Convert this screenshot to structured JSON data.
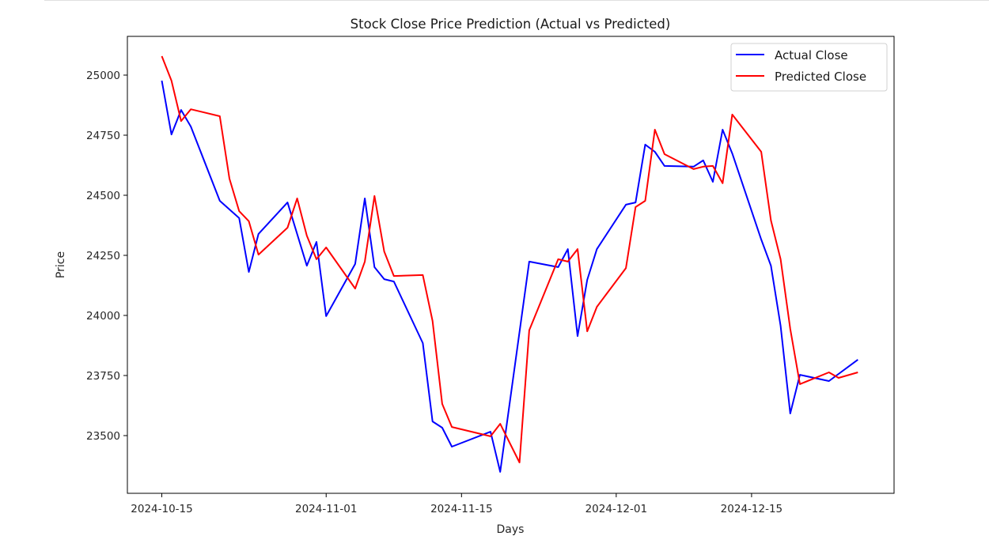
{
  "chart_data": {
    "type": "line",
    "title": "Stock Close Price Prediction (Actual vs Predicted)",
    "xlabel": "Days",
    "ylabel": "Price",
    "x_ticks": [
      "2024-10-15",
      "2024-11-01",
      "2024-11-15",
      "2024-12-01",
      "2024-12-15"
    ],
    "y_ticks": [
      23500,
      23750,
      24000,
      24250,
      24500,
      24750,
      25000
    ],
    "xlim": [
      "2024-10-11",
      "2024-12-29"
    ],
    "ylim": [
      23305,
      25155
    ],
    "grid": false,
    "legend_position": "upper right",
    "series": [
      {
        "name": "Actual Close",
        "color": "#0000ff",
        "x": [
          "2024-10-15",
          "2024-10-16",
          "2024-10-17",
          "2024-10-18",
          "2024-10-21",
          "2024-10-23",
          "2024-10-24",
          "2024-10-25",
          "2024-10-28",
          "2024-10-30",
          "2024-10-31",
          "2024-11-01",
          "2024-11-04",
          "2024-11-05",
          "2024-11-06",
          "2024-11-07",
          "2024-11-08",
          "2024-11-11",
          "2024-11-12",
          "2024-11-13",
          "2024-11-14",
          "2024-11-18",
          "2024-11-19",
          "2024-11-22",
          "2024-11-25",
          "2024-11-26",
          "2024-11-27",
          "2024-11-28",
          "2024-11-29",
          "2024-12-02",
          "2024-12-03",
          "2024-12-04",
          "2024-12-05",
          "2024-12-06",
          "2024-12-09",
          "2024-12-10",
          "2024-12-11",
          "2024-12-12",
          "2024-12-13",
          "2024-12-16",
          "2024-12-17",
          "2024-12-18",
          "2024-12-19",
          "2024-12-20",
          "2024-12-23",
          "2024-12-26"
        ],
        "values": [
          24977,
          24753,
          24855,
          24786,
          24477,
          24405,
          24181,
          24339,
          24470,
          24207,
          24306,
          23997,
          24214,
          24487,
          24201,
          24151,
          24141,
          23885,
          23559,
          23533,
          23454,
          23516,
          23349,
          24224,
          24201,
          24276,
          23914,
          24148,
          24276,
          24461,
          24470,
          24711,
          24681,
          24622,
          24619,
          24645,
          24556,
          24773,
          24674,
          24316,
          24207,
          23957,
          23592,
          23753,
          23727,
          23816
        ]
      },
      {
        "name": "Predicted Close",
        "color": "#ff0000",
        "x": [
          "2024-10-15",
          "2024-10-16",
          "2024-10-17",
          "2024-10-18",
          "2024-10-21",
          "2024-10-22",
          "2024-10-23",
          "2024-10-24",
          "2024-10-25",
          "2024-10-28",
          "2024-10-29",
          "2024-10-30",
          "2024-10-31",
          "2024-11-01",
          "2024-11-04",
          "2024-11-05",
          "2024-11-06",
          "2024-11-07",
          "2024-11-08",
          "2024-11-11",
          "2024-11-12",
          "2024-11-13",
          "2024-11-14",
          "2024-11-18",
          "2024-11-19",
          "2024-11-21",
          "2024-11-22",
          "2024-11-25",
          "2024-11-26",
          "2024-11-27",
          "2024-11-28",
          "2024-11-29",
          "2024-12-02",
          "2024-12-03",
          "2024-12-04",
          "2024-12-05",
          "2024-12-06",
          "2024-12-09",
          "2024-12-10",
          "2024-12-11",
          "2024-12-12",
          "2024-12-13",
          "2024-12-16",
          "2024-12-17",
          "2024-12-18",
          "2024-12-19",
          "2024-12-20",
          "2024-12-23",
          "2024-12-24",
          "2024-12-26"
        ],
        "values": [
          25079,
          24977,
          24809,
          24858,
          24829,
          24569,
          24434,
          24392,
          24253,
          24365,
          24487,
          24332,
          24234,
          24283,
          24112,
          24224,
          24497,
          24266,
          24164,
          24168,
          23977,
          23632,
          23536,
          23497,
          23549,
          23388,
          23938,
          24234,
          24224,
          24276,
          23934,
          24036,
          24197,
          24451,
          24477,
          24773,
          24671,
          24609,
          24619,
          24622,
          24550,
          24836,
          24681,
          24395,
          24234,
          23944,
          23714,
          23763,
          23740,
          23763
        ]
      }
    ]
  },
  "legend": {
    "items": [
      {
        "label": "Actual Close",
        "color": "#0000ff"
      },
      {
        "label": "Predicted Close",
        "color": "#ff0000"
      }
    ]
  }
}
